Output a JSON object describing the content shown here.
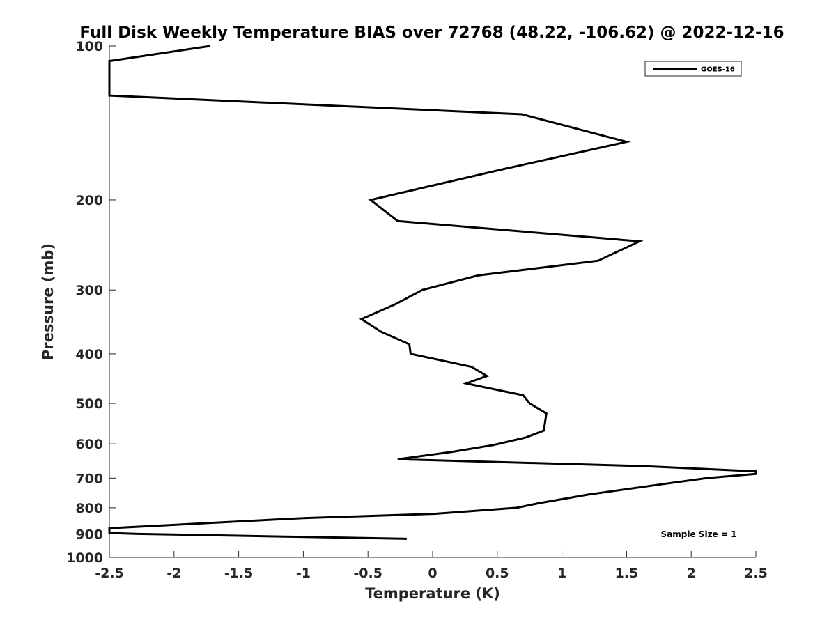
{
  "chart_data": {
    "type": "line",
    "title": "Full Disk Weekly Temperature BIAS over 72768 (48.22, -106.62) @ 2022-12-16",
    "xlabel": "Temperature (K)",
    "ylabel": "Pressure (mb)",
    "xlim": [
      -2.5,
      2.5
    ],
    "ylim": [
      100,
      1000
    ],
    "y_scale": "log",
    "y_reversed": true,
    "x_ticks": [
      "-2.5",
      "-2",
      "-1.5",
      "-1",
      "-0.5",
      "0",
      "0.5",
      "1",
      "1.5",
      "2",
      "2.5"
    ],
    "y_ticks": [
      "100",
      "200",
      "300",
      "400",
      "500",
      "600",
      "700",
      "800",
      "900",
      "1000"
    ],
    "grid": false,
    "legend": {
      "position": "top-right",
      "entries": [
        "GOES-16"
      ]
    },
    "annotation": "Sample Size = 1",
    "series": [
      {
        "name": "GOES-16",
        "color": "#000000",
        "points": [
          [
            -1.72,
            100
          ],
          [
            -2.5,
            107
          ],
          [
            -2.5,
            123
          ],
          [
            -2.5,
            125
          ],
          [
            0.69,
            136
          ],
          [
            1.5,
            154
          ],
          [
            0.55,
            174
          ],
          [
            -0.48,
            200
          ],
          [
            -0.27,
            220
          ],
          [
            1.6,
            241
          ],
          [
            1.28,
            263
          ],
          [
            0.35,
            281
          ],
          [
            -0.08,
            300
          ],
          [
            -0.29,
            320
          ],
          [
            -0.55,
            342
          ],
          [
            -0.4,
            362
          ],
          [
            -0.18,
            383
          ],
          [
            -0.17,
            400
          ],
          [
            0.3,
            424
          ],
          [
            0.42,
            442
          ],
          [
            0.26,
            457
          ],
          [
            0.7,
            482
          ],
          [
            0.75,
            500
          ],
          [
            0.88,
            523
          ],
          [
            0.86,
            565
          ],
          [
            0.72,
            583
          ],
          [
            0.47,
            603
          ],
          [
            0.15,
            622
          ],
          [
            -0.27,
            643
          ],
          [
            1.62,
            663
          ],
          [
            2.5,
            679
          ],
          [
            2.5,
            687
          ],
          [
            2.12,
            700
          ],
          [
            1.73,
            722
          ],
          [
            1.2,
            754
          ],
          [
            0.82,
            784
          ],
          [
            0.65,
            800
          ],
          [
            0.02,
            822
          ],
          [
            -1.0,
            838
          ],
          [
            -2.5,
            877
          ],
          [
            -2.5,
            896
          ],
          [
            -2.28,
            900
          ],
          [
            -0.2,
            920
          ]
        ]
      }
    ]
  }
}
